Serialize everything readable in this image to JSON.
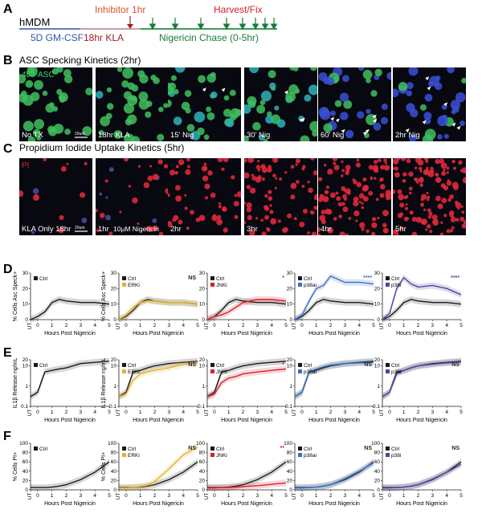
{
  "panels": {
    "a": "A",
    "b": "B",
    "c": "C",
    "d": "D",
    "e": "E",
    "f": "F"
  },
  "timeline": {
    "cell": "hMDM",
    "gmcsf": "5D GM-CSF",
    "kla": "18hr KLA",
    "inhibitor": "Inhibitor 1hr",
    "chase": "Nigericin Chase (0-5hr)",
    "harvest": "Harvest/Fix"
  },
  "colors": {
    "ctrl": "#1a1a1a",
    "erki": "#e6b12c",
    "jnki": "#d8202f",
    "p38ai": "#3a6fc4",
    "p38i": "#5a3fa3",
    "gmcsf_text": "#2d5aa8",
    "kla_text": "#a31e22",
    "chase_text": "#1d7a3a",
    "inhibitor_text": "#d9552a",
    "harvest_text": "#d8202f"
  },
  "asc": {
    "title": "ASC Specking Kinetics (2hr)",
    "stain": "488-ASC",
    "scalebar": "20um",
    "panels": [
      "No TX",
      "18hr KLA",
      "15' Nig",
      "30' Nig",
      "60' Nig",
      "2hr Nig"
    ]
  },
  "pi": {
    "title": "Propidium Iodide Uptake Kinetics (5hr)",
    "stain": "PI",
    "scalebar": "20um",
    "panels": [
      "KLA Only 18hr",
      "1hr",
      "2hr",
      "3hr",
      "4hr",
      "5hr"
    ],
    "note": "10µM Nigericin"
  },
  "x_axis": {
    "label": "Hours Post Nigericin",
    "ticks": [
      "UT",
      "0",
      "1",
      "2",
      "3",
      "4",
      "5"
    ]
  },
  "chart_data": [
    {
      "row": "D",
      "type": "line",
      "ylabel": "% Cells Asc Speck+",
      "xlabel": "Hours Post Nigericin",
      "x": [
        -0.5,
        0,
        0.5,
        1,
        1.5,
        2,
        3,
        4,
        5
      ],
      "series": [
        {
          "name": "Ctrl",
          "values": [
            0,
            2,
            5,
            11,
            13,
            12,
            11,
            11,
            10
          ]
        }
      ]
    },
    {
      "row": "D",
      "type": "line",
      "ylabel": "% Cells Asc Speck+",
      "xlabel": "Hours Post Nigericin",
      "significance": "NS",
      "x": [
        -0.5,
        0,
        0.5,
        1,
        1.5,
        2,
        3,
        4,
        5
      ],
      "series": [
        {
          "name": "Ctrl",
          "values": [
            0,
            2,
            6,
            11,
            13,
            12,
            11,
            11,
            10
          ]
        },
        {
          "name": "ERKi",
          "values": [
            0,
            3,
            8,
            11,
            12,
            12,
            11,
            11,
            10
          ]
        }
      ]
    },
    {
      "row": "D",
      "type": "line",
      "ylabel": "",
      "xlabel": "Hours Post Nigericin",
      "significance": "*",
      "x": [
        -0.5,
        0,
        0.5,
        1,
        1.5,
        2,
        3,
        4,
        5
      ],
      "series": [
        {
          "name": "Ctrl",
          "values": [
            0,
            2,
            6,
            11,
            13,
            12,
            11,
            11,
            10
          ]
        },
        {
          "name": "JNKi",
          "values": [
            0,
            2,
            3,
            5,
            8,
            11,
            13,
            13,
            12
          ]
        }
      ]
    },
    {
      "row": "D",
      "type": "line",
      "ylabel": "",
      "xlabel": "Hours Post Nigericin",
      "significance": "****",
      "x": [
        -0.5,
        0,
        0.5,
        1,
        1.5,
        2,
        3,
        4,
        5
      ],
      "series": [
        {
          "name": "Ctrl",
          "values": [
            0,
            2,
            6,
            11,
            13,
            12,
            11,
            11,
            10
          ]
        },
        {
          "name": "p38ai",
          "values": [
            0,
            3,
            12,
            20,
            22,
            28,
            24,
            24,
            23
          ]
        }
      ]
    },
    {
      "row": "D",
      "type": "line",
      "ylabel": "",
      "xlabel": "Hours Post Nigericin",
      "significance": "****",
      "x": [
        -0.5,
        0,
        0.5,
        1,
        1.5,
        2,
        3,
        4,
        5
      ],
      "series": [
        {
          "name": "Ctrl",
          "values": [
            0,
            2,
            6,
            11,
            13,
            12,
            11,
            11,
            10
          ]
        },
        {
          "name": "p38i",
          "values": [
            0,
            4,
            20,
            27,
            23,
            21,
            22,
            20,
            16
          ]
        }
      ]
    },
    {
      "row": "E",
      "type": "line",
      "ylabel": "IL1β Release ng/mL",
      "xlabel": "Hours Post Nigericin",
      "yscale": "log",
      "x": [
        -0.5,
        0,
        0.5,
        1,
        1.5,
        2,
        3,
        4,
        5
      ],
      "series": [
        {
          "name": "Ctrl",
          "values": [
            0.3,
            0.5,
            5,
            6,
            7,
            8,
            13,
            15,
            17
          ]
        }
      ]
    },
    {
      "row": "E",
      "type": "line",
      "ylabel": "IL1β Release ng/mL",
      "xlabel": "Hours Post Nigericin",
      "yscale": "log",
      "significance": "NS",
      "x": [
        -0.5,
        0,
        0.5,
        1,
        1.5,
        2,
        3,
        4,
        5
      ],
      "series": [
        {
          "name": "Ctrl",
          "values": [
            0.3,
            0.5,
            5,
            6,
            8,
            10,
            13,
            15,
            17
          ]
        },
        {
          "name": "ERKi",
          "values": [
            0.3,
            0.4,
            2,
            4,
            5,
            6,
            8,
            12,
            14
          ]
        }
      ]
    },
    {
      "row": "E",
      "type": "line",
      "ylabel": "",
      "xlabel": "Hours Post Nigericin",
      "yscale": "log",
      "significance": "*",
      "x": [
        -0.5,
        0,
        0.5,
        1,
        1.5,
        2,
        3,
        4,
        5
      ],
      "series": [
        {
          "name": "Ctrl",
          "values": [
            0.3,
            0.5,
            5,
            6,
            8,
            10,
            13,
            15,
            17
          ]
        },
        {
          "name": "JNKi",
          "values": [
            0.3,
            0.4,
            1.5,
            2.5,
            3,
            4,
            5,
            6,
            7
          ]
        }
      ]
    },
    {
      "row": "E",
      "type": "line",
      "ylabel": "",
      "xlabel": "Hours Post Nigericin",
      "yscale": "log",
      "significance": "NS",
      "x": [
        -0.5,
        0,
        0.5,
        1,
        1.5,
        2,
        3,
        4,
        5
      ],
      "series": [
        {
          "name": "Ctrl",
          "values": [
            0.3,
            0.5,
            5,
            6,
            8,
            10,
            13,
            15,
            17
          ]
        },
        {
          "name": "p38ai",
          "values": [
            0.3,
            0.5,
            5,
            7,
            9,
            11,
            13,
            14,
            15
          ]
        }
      ]
    },
    {
      "row": "E",
      "type": "line",
      "ylabel": "",
      "xlabel": "Hours Post Nigericin",
      "yscale": "log",
      "significance": "NS",
      "x": [
        -0.5,
        0,
        0.5,
        1,
        1.5,
        2,
        3,
        4,
        5
      ],
      "series": [
        {
          "name": "Ctrl",
          "values": [
            0.3,
            0.5,
            5,
            6,
            8,
            10,
            13,
            15,
            17
          ]
        },
        {
          "name": "p38i",
          "values": [
            0.3,
            0.5,
            4,
            6,
            8,
            10,
            12,
            14,
            16
          ]
        }
      ]
    },
    {
      "row": "F",
      "type": "line",
      "ylabel": "% Cells PI+",
      "xlabel": "Hours Post Nigericin",
      "x": [
        -0.5,
        0,
        0.5,
        1,
        1.5,
        2,
        3,
        4,
        5
      ],
      "series": [
        {
          "name": "Ctrl",
          "values": [
            5,
            5,
            5,
            6,
            8,
            11,
            22,
            38,
            60
          ]
        }
      ]
    },
    {
      "row": "F",
      "type": "line",
      "ylabel": "% Cells PI+",
      "xlabel": "Hours Post Nigericin",
      "significance": "NS",
      "x": [
        -0.5,
        0,
        0.5,
        1,
        1.5,
        2,
        3,
        4,
        5
      ],
      "series": [
        {
          "name": "Ctrl",
          "values": [
            5,
            5,
            5,
            6,
            8,
            11,
            22,
            38,
            60
          ]
        },
        {
          "name": "ERKi",
          "values": [
            4,
            4,
            5,
            7,
            10,
            18,
            45,
            75,
            92
          ]
        }
      ]
    },
    {
      "row": "F",
      "type": "line",
      "ylabel": "",
      "xlabel": "Hours Post Nigericin",
      "significance": "**",
      "x": [
        -0.5,
        0,
        0.5,
        1,
        1.5,
        2,
        3,
        4,
        5
      ],
      "series": [
        {
          "name": "Ctrl",
          "values": [
            5,
            5,
            5,
            6,
            8,
            11,
            22,
            38,
            60
          ]
        },
        {
          "name": "JNKi",
          "values": [
            4,
            4,
            5,
            5,
            6,
            7,
            9,
            12,
            15
          ]
        }
      ]
    },
    {
      "row": "F",
      "type": "line",
      "ylabel": "",
      "xlabel": "Hours Post Nigericin",
      "significance": "NS",
      "x": [
        -0.5,
        0,
        0.5,
        1,
        1.5,
        2,
        3,
        4,
        5
      ],
      "series": [
        {
          "name": "Ctrl",
          "values": [
            5,
            5,
            5,
            6,
            8,
            11,
            22,
            38,
            60
          ]
        },
        {
          "name": "p38ai",
          "values": [
            4,
            4,
            5,
            6,
            8,
            11,
            24,
            40,
            58
          ]
        }
      ]
    },
    {
      "row": "F",
      "type": "line",
      "ylabel": "",
      "xlabel": "Hours Post Nigericin",
      "significance": "NS",
      "x": [
        -0.5,
        0,
        0.5,
        1,
        1.5,
        2,
        3,
        4,
        5
      ],
      "series": [
        {
          "name": "Ctrl",
          "values": [
            5,
            5,
            5,
            6,
            8,
            11,
            22,
            38,
            60
          ]
        },
        {
          "name": "p38i",
          "values": [
            4,
            4,
            5,
            6,
            8,
            11,
            23,
            38,
            55
          ]
        }
      ]
    }
  ]
}
